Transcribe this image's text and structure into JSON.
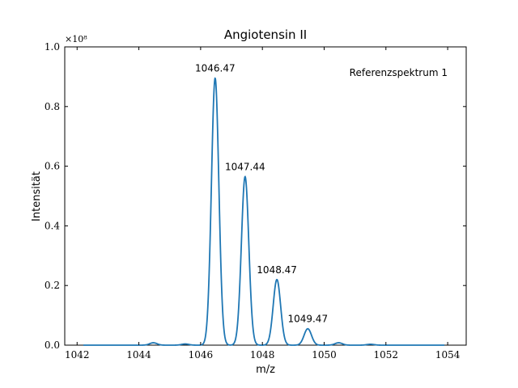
{
  "chart_data": {
    "type": "line",
    "title": "Angiotensin II",
    "xlabel": "m/z",
    "ylabel": "Intensität",
    "y_scale_label": "×10⁸",
    "xlim": [
      1041.6,
      1054.6
    ],
    "ylim": [
      0,
      1.0
    ],
    "x_ticks": [
      1042,
      1044,
      1046,
      1048,
      1050,
      1052,
      1054
    ],
    "y_ticks": [
      0.0,
      0.2,
      0.4,
      0.6,
      0.8,
      1.0
    ],
    "x_tick_labels": [
      "1042",
      "1044",
      "1046",
      "1048",
      "1050",
      "1052",
      "1054"
    ],
    "y_tick_labels": [
      "0.0",
      "0.2",
      "0.4",
      "0.6",
      "0.8",
      "1.0"
    ],
    "grid": false,
    "annotation": "Referenzspektrum 1",
    "line_color": "#1f77b4",
    "peaks": [
      {
        "x": 1044.47,
        "y": 0.008
      },
      {
        "x": 1045.5,
        "y": 0.004
      },
      {
        "x": 1046.47,
        "y": 0.895,
        "label": "1046.47"
      },
      {
        "x": 1047.44,
        "y": 0.565,
        "label": "1047.44"
      },
      {
        "x": 1048.47,
        "y": 0.22,
        "label": "1048.47"
      },
      {
        "x": 1049.47,
        "y": 0.055,
        "label": "1049.47"
      },
      {
        "x": 1050.47,
        "y": 0.008
      },
      {
        "x": 1051.5,
        "y": 0.003
      }
    ],
    "peak_sigma": 0.12
  }
}
